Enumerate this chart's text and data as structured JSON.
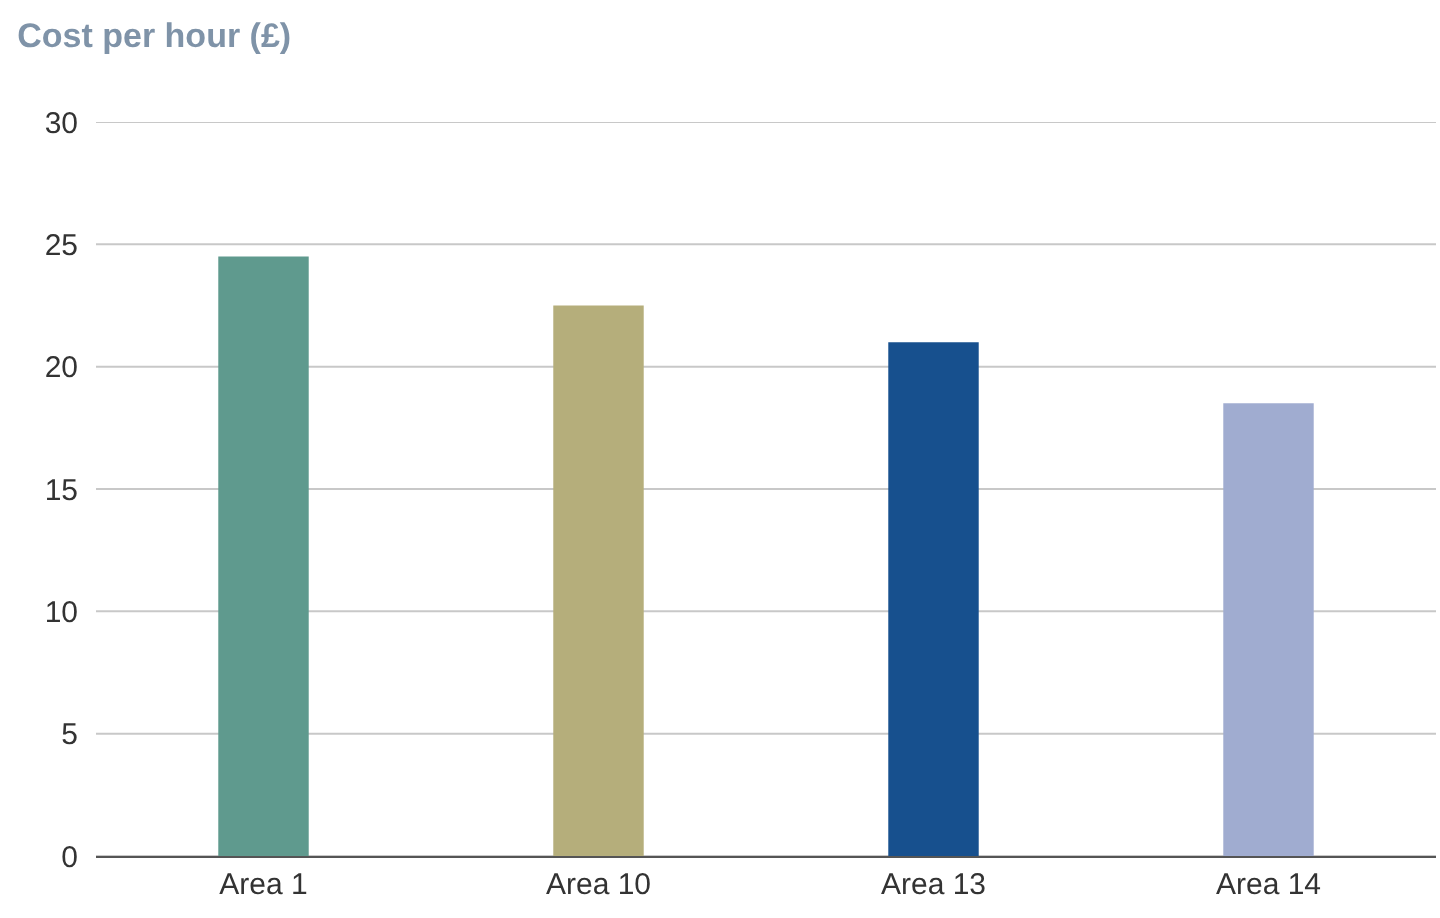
{
  "chart_data": {
    "type": "bar",
    "title": "Cost per hour (£)",
    "categories": [
      "Area 1",
      "Area 10",
      "Area 13",
      "Area 14"
    ],
    "values": [
      24.5,
      22.5,
      21,
      18.5
    ],
    "colors": [
      "#5f9a8e",
      "#b5ae7b",
      "#17508e",
      "#a0acd0"
    ],
    "ylim": [
      0,
      30
    ],
    "yticks": [
      0,
      5,
      10,
      15,
      20,
      25,
      30
    ],
    "grid": "y"
  }
}
